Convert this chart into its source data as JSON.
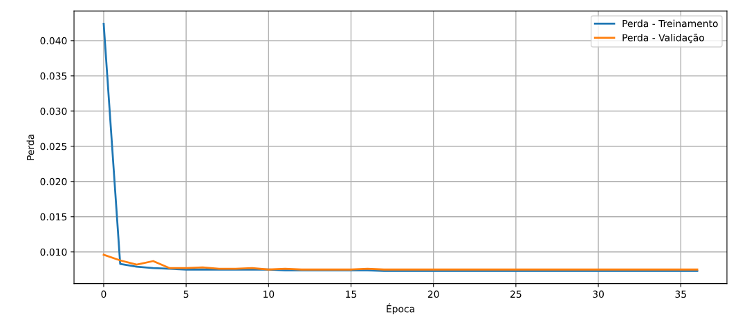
{
  "chart_data": {
    "type": "line",
    "xlabel": "Época",
    "ylabel": "Perda",
    "x": [
      0,
      1,
      2,
      3,
      4,
      5,
      6,
      7,
      8,
      9,
      10,
      11,
      12,
      13,
      14,
      15,
      16,
      17,
      18,
      19,
      20,
      21,
      22,
      23,
      24,
      25,
      26,
      27,
      28,
      29,
      30,
      31,
      32,
      33,
      34,
      35,
      36
    ],
    "series": [
      {
        "name": "Perda - Treinamento",
        "color": "#1f77b4",
        "values": [
          0.0424,
          0.0083,
          0.0079,
          0.0077,
          0.0076,
          0.0075,
          0.0075,
          0.0075,
          0.0075,
          0.0075,
          0.0075,
          0.0074,
          0.0074,
          0.0074,
          0.0074,
          0.0074,
          0.0074,
          0.0073,
          0.0073,
          0.0073,
          0.0073,
          0.0073,
          0.0073,
          0.0073,
          0.0073,
          0.0073,
          0.0073,
          0.0073,
          0.0073,
          0.0073,
          0.0073,
          0.0073,
          0.0073,
          0.0073,
          0.0073,
          0.0073,
          0.0073
        ]
      },
      {
        "name": "Perda - Validação",
        "color": "#ff7f0e",
        "values": [
          0.0096,
          0.0088,
          0.0082,
          0.0087,
          0.0077,
          0.0077,
          0.0078,
          0.0076,
          0.0076,
          0.0077,
          0.0075,
          0.0076,
          0.0075,
          0.0075,
          0.0075,
          0.0075,
          0.0076,
          0.0075,
          0.0075,
          0.0075,
          0.0075,
          0.0075,
          0.0075,
          0.0075,
          0.0075,
          0.0075,
          0.0075,
          0.0075,
          0.0075,
          0.0075,
          0.0075,
          0.0075,
          0.0075,
          0.0075,
          0.0075,
          0.0075,
          0.0075
        ]
      }
    ],
    "xlim": [
      -1.8,
      37.8
    ],
    "xticks": [
      0,
      5,
      10,
      15,
      20,
      25,
      30,
      35
    ],
    "ylim": [
      0.0055,
      0.0442
    ],
    "yticks": [
      {
        "value": 0.01,
        "label": "0.010"
      },
      {
        "value": 0.015,
        "label": "0.015"
      },
      {
        "value": 0.02,
        "label": "0.020"
      },
      {
        "value": 0.025,
        "label": "0.025"
      },
      {
        "value": 0.03,
        "label": "0.030"
      },
      {
        "value": 0.035,
        "label": "0.035"
      },
      {
        "value": 0.04,
        "label": "0.040"
      }
    ],
    "grid": true,
    "legend": "top right"
  }
}
